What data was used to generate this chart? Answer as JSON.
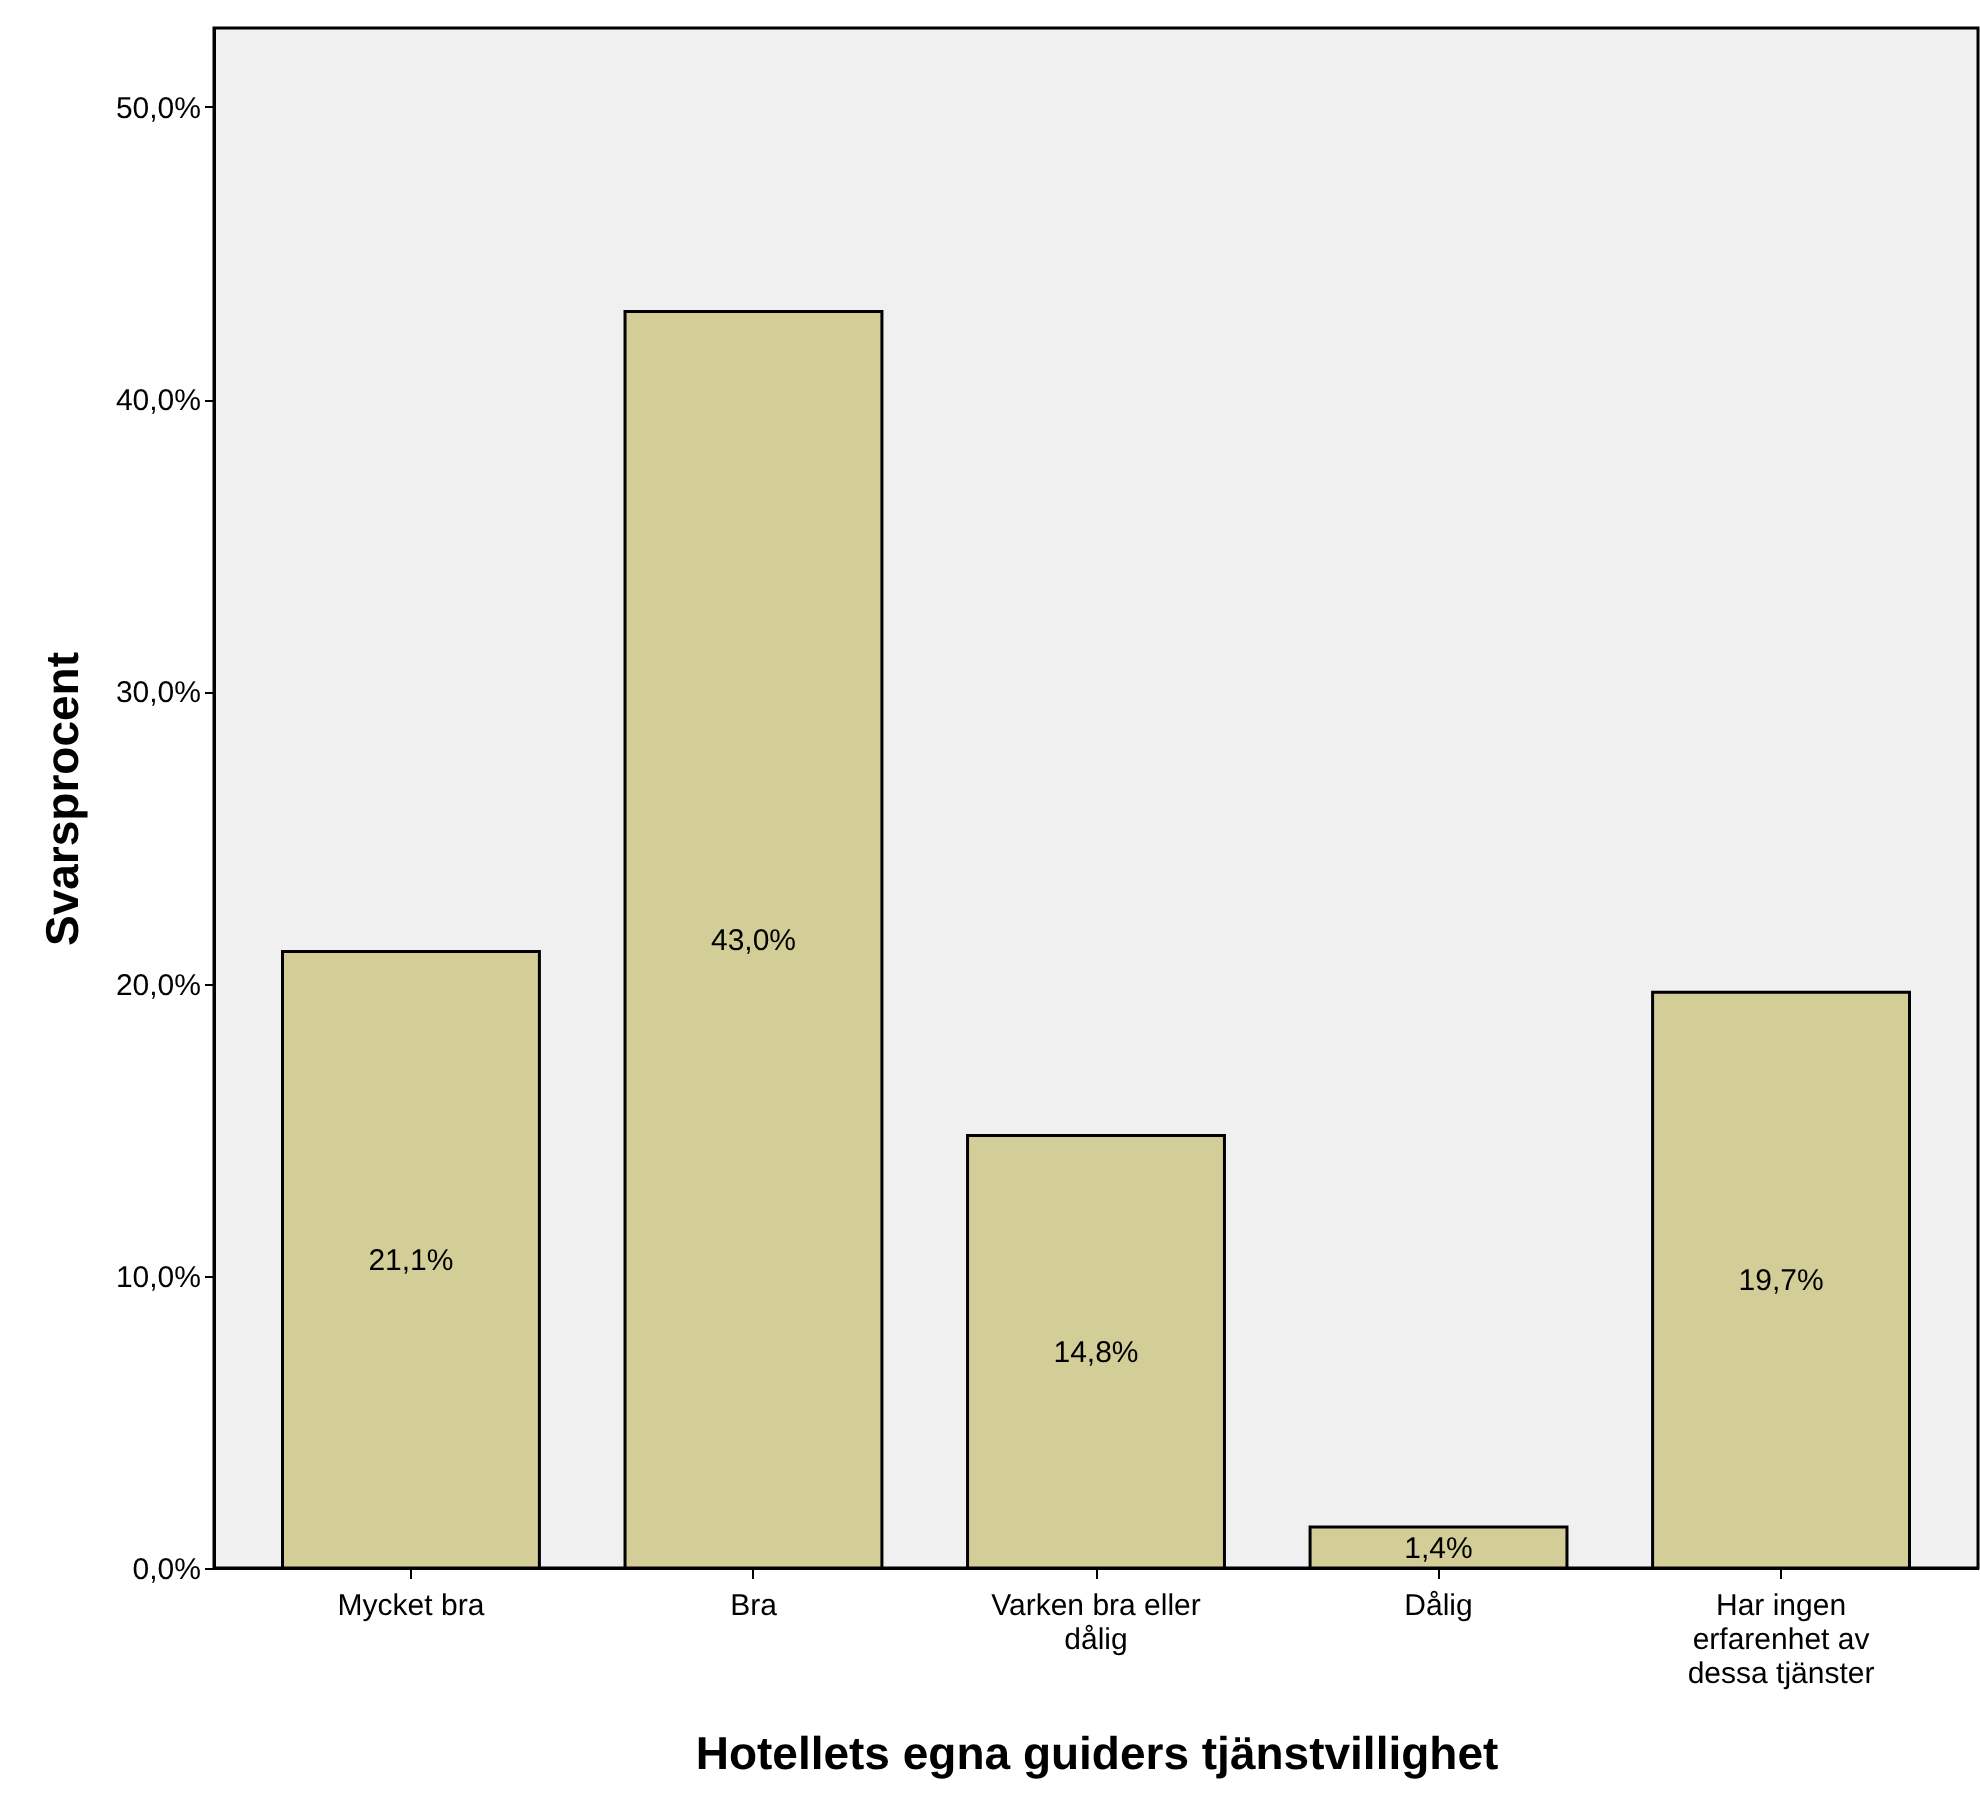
{
  "chart_data": {
    "type": "bar",
    "xlabel": "Hotellets egna guiders tjänstvillighet",
    "ylabel": "Svarsprocent",
    "categories": [
      "Mycket bra",
      "Bra",
      "Varken bra eller dålig",
      "Dålig",
      "Har ingen erfarenhet av dessa tjänster"
    ],
    "values": [
      21.1,
      43.0,
      14.8,
      1.4,
      19.7
    ],
    "value_labels": [
      "21,1%",
      "43,0%",
      "14,8%",
      "1,4%",
      "19,7%"
    ],
    "color": "#d3ce98",
    "ylim": [
      0,
      52.7
    ],
    "yticks": [
      {
        "value": 0,
        "label": "0,0%"
      },
      {
        "value": 10,
        "label": "10,0%"
      },
      {
        "value": 20,
        "label": "20,0%"
      },
      {
        "value": 30,
        "label": "30,0%"
      },
      {
        "value": 40,
        "label": "40,0%"
      },
      {
        "value": 50,
        "label": "50,0%"
      }
    ],
    "grid": false
  }
}
